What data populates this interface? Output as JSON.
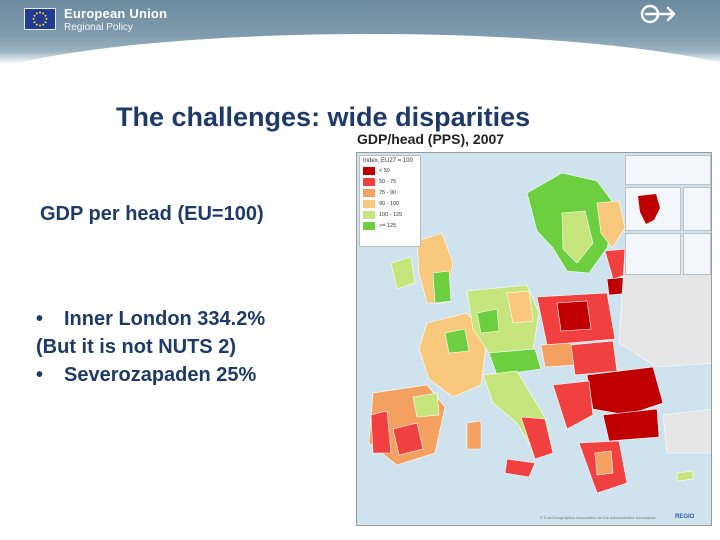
{
  "header": {
    "brand_title": "European Union",
    "brand_subtitle": "Regional Policy",
    "band_color": "#7f9cae",
    "flag_icon": "eu-flag-icon",
    "logo_icon": "regio-arrows-logo"
  },
  "slide": {
    "title": "The challenges: wide disparities",
    "gdp_label": "GDP per head (EU=100)",
    "bullets": [
      {
        "marker": "•",
        "text": "Inner London 334.2%"
      },
      {
        "marker": "",
        "text": "(But it is not NUTS 2)"
      },
      {
        "marker": "•",
        "text": "Severozapaden 25%"
      }
    ],
    "text_color": "#1f3a68"
  },
  "map": {
    "caption": "GDP/head (PPS), 2007",
    "legend_title": "Index, EU27 = 100",
    "legend": [
      {
        "label": "< 50",
        "color": "#c00000"
      },
      {
        "label": "50 - 75",
        "color": "#f04040"
      },
      {
        "label": "75 - 90",
        "color": "#f4a060"
      },
      {
        "label": "90 - 100",
        "color": "#f8c87c"
      },
      {
        "label": "100 - 125",
        "color": "#c6e57d"
      },
      {
        "label": ">= 125",
        "color": "#6ccf3f"
      }
    ],
    "credit": "© EuroGeographics Association for the administrative boundaries",
    "logo": "REGIO"
  }
}
